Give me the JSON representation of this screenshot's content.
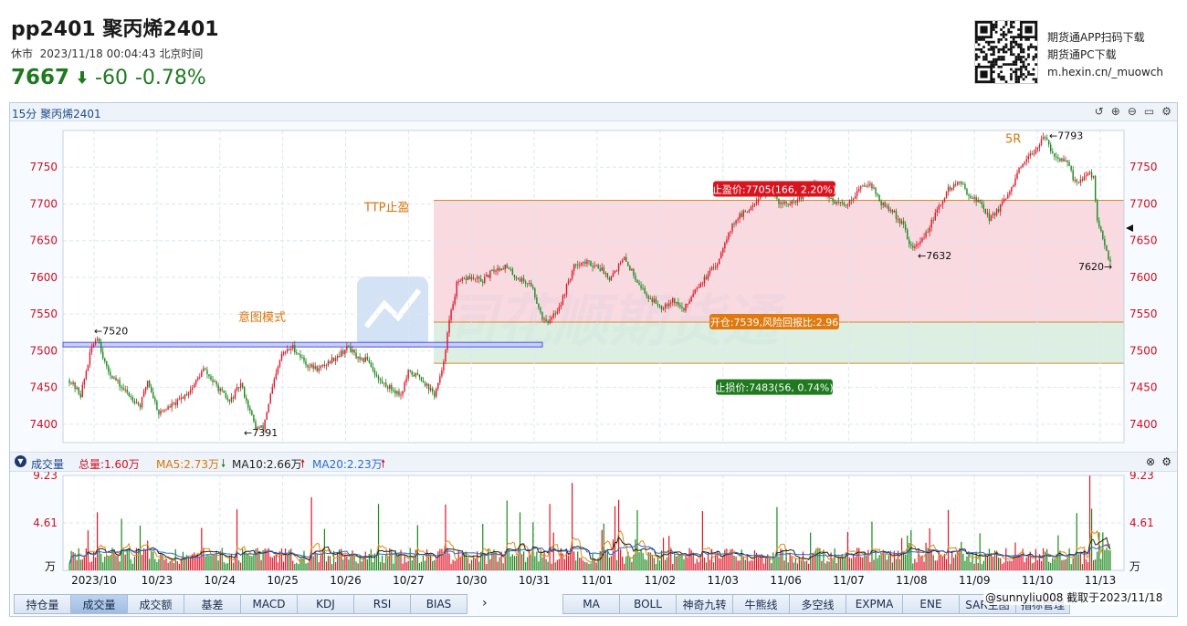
{
  "header": {
    "title": "pp2401 聚丙烯2401",
    "status": "休市",
    "datetime": "2023/11/18 00:04:43 北京时间",
    "price": "7667",
    "change": "-60",
    "change_pct": "-0.78%"
  },
  "promo": {
    "line1": "期货通APP扫码下载",
    "line2": "期货通PC下载",
    "line3": "m.hexin.cn/_muowch"
  },
  "panel": {
    "title": "15分  聚丙烯2401"
  },
  "chart_data": {
    "type": "candlestick",
    "y_ticks": [
      "7750",
      "7700",
      "7650",
      "7600",
      "7550",
      "7500",
      "7450",
      "7400"
    ],
    "ylim": [
      7375,
      7800
    ],
    "x_labels": [
      "2023/10",
      "10/23",
      "10/24",
      "10/25",
      "10/26",
      "10/27",
      "10/30",
      "10/31",
      "11/01",
      "11/02",
      "11/03",
      "11/06",
      "11/07",
      "11/08",
      "11/09",
      "11/10",
      "11/13"
    ],
    "watermark": "同花顺期货通",
    "annotations": {
      "high_1": "←7520",
      "low_1": "←7391",
      "intent": "意图模式",
      "ttp": "TTP止盈",
      "take_profit": "止盈价:7705(166, 2.20%)",
      "entry": "开仓:7539,风险回报比:2.96",
      "stop_loss": "止损价:7483(56, 0.74%)",
      "local_low": "←7632",
      "peak": "←7793",
      "five_r": "5R",
      "last": "7620→"
    },
    "levels": {
      "take_profit": 7705,
      "entry": 7539,
      "stop_loss": 7483,
      "intent_top": 7509,
      "intent_bottom": 7505
    },
    "volume": {
      "y_ticks": [
        "9.23",
        "4.61",
        "万"
      ],
      "ymax": 9.23,
      "label": "成交量",
      "total": "总量:1.60万",
      "ma5": "MA5:2.73万",
      "ma10": "MA10:2.66万",
      "ma20": "MA20:2.23万"
    }
  },
  "buttons_left": [
    "持仓量",
    "成交量",
    "成交额",
    "基差",
    "MACD",
    "KDJ",
    "RSI",
    "BIAS"
  ],
  "buttons_right": [
    "MA",
    "BOLL",
    "神奇九转",
    "牛熊线",
    "多空线",
    "EXPMA",
    "ENE",
    "SAR主图",
    "指标管理"
  ],
  "footer": {
    "credit": "@sunnyliu008  截取于2023/11/18"
  },
  "colors": {
    "up": "#e0192b",
    "down": "#1f8a1f",
    "tp_zone": "#f7d3da",
    "sl_zone": "#d7ecdd",
    "accent": "#d4760a"
  }
}
